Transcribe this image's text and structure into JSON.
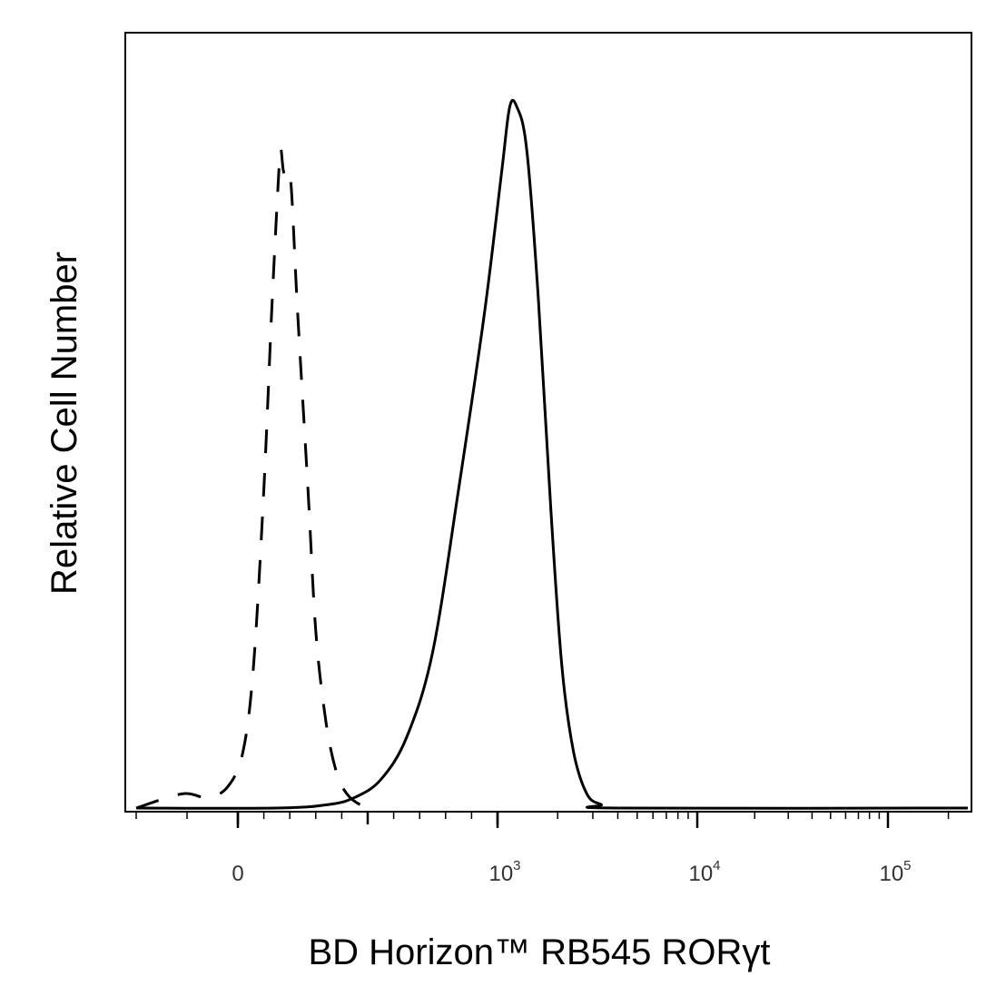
{
  "chart_data": {
    "type": "line",
    "title": "",
    "xlabel": "BD Horizon™ RB545 RORγt",
    "ylabel": "Relative Cell Number",
    "x_scale": "biexponential",
    "x_ticks": [
      {
        "value": 0,
        "label": "0",
        "exp": ""
      },
      {
        "value": 1000,
        "label": "10",
        "exp": "3"
      },
      {
        "value": 10000,
        "label": "10",
        "exp": "4"
      },
      {
        "value": 100000,
        "label": "10",
        "exp": "5"
      }
    ],
    "xlim": [
      -200,
      250000
    ],
    "ylim": [
      0,
      100
    ],
    "grid": false,
    "legend": "none",
    "series": [
      {
        "style": "dashed",
        "color": "#000000",
        "points": [
          [
            -200,
            0
          ],
          [
            -110,
            2
          ],
          [
            -60,
            1.5
          ],
          [
            -20,
            3
          ],
          [
            20,
            8
          ],
          [
            60,
            20
          ],
          [
            100,
            45
          ],
          [
            130,
            70
          ],
          [
            155,
            88
          ],
          [
            165,
            93
          ],
          [
            175,
            90
          ],
          [
            190,
            89
          ],
          [
            205,
            88
          ],
          [
            230,
            70
          ],
          [
            270,
            45
          ],
          [
            300,
            25
          ],
          [
            340,
            12
          ],
          [
            380,
            5
          ],
          [
            420,
            2
          ],
          [
            470,
            0.5
          ],
          [
            530,
            0
          ]
        ]
      },
      {
        "style": "solid",
        "color": "#000000",
        "points": [
          [
            -200,
            0
          ],
          [
            150,
            0
          ],
          [
            350,
            0.5
          ],
          [
            450,
            1.5
          ],
          [
            550,
            4
          ],
          [
            650,
            10
          ],
          [
            750,
            22
          ],
          [
            850,
            45
          ],
          [
            950,
            70
          ],
          [
            1050,
            90
          ],
          [
            1150,
            99
          ],
          [
            1250,
            99
          ],
          [
            1400,
            93
          ],
          [
            1600,
            72
          ],
          [
            1850,
            42
          ],
          [
            2100,
            20
          ],
          [
            2400,
            8
          ],
          [
            2800,
            2
          ],
          [
            3300,
            0.5
          ],
          [
            4000,
            0
          ],
          [
            250000,
            0
          ]
        ]
      }
    ]
  }
}
